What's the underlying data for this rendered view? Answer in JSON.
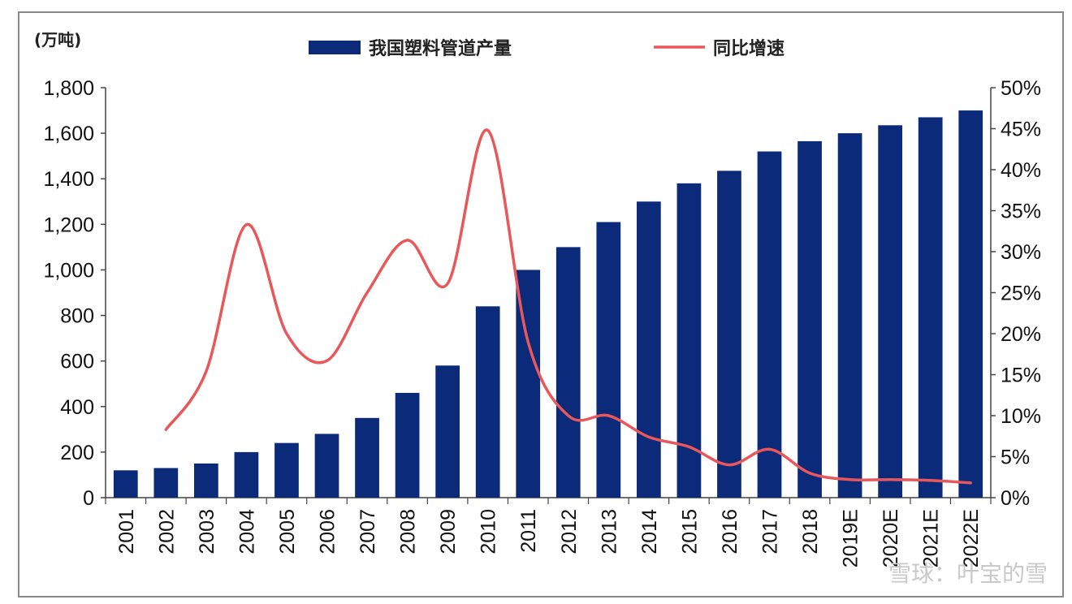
{
  "chart_data": {
    "type": "bar",
    "categories": [
      "2001",
      "2002",
      "2003",
      "2004",
      "2005",
      "2006",
      "2007",
      "2008",
      "2009",
      "2010",
      "2011",
      "2012",
      "2013",
      "2014",
      "2015",
      "2016",
      "2017",
      "2018",
      "2019E",
      "2020E",
      "2021E",
      "2022E"
    ],
    "series": [
      {
        "name": "我国塑料管道产量",
        "type": "bar",
        "axis": "left",
        "color": "#0b2a7a",
        "values": [
          120,
          130,
          150,
          200,
          240,
          280,
          350,
          460,
          580,
          840,
          1000,
          1100,
          1210,
          1300,
          1380,
          1435,
          1520,
          1565,
          1600,
          1635,
          1670,
          1700
        ]
      },
      {
        "name": "同比增速",
        "type": "line",
        "axis": "right",
        "color": "#e8585a",
        "values": [
          null,
          8.3,
          15.4,
          33.3,
          20.0,
          16.7,
          25.0,
          31.4,
          26.1,
          44.8,
          19.0,
          10.0,
          10.0,
          7.4,
          6.2,
          4.0,
          5.9,
          3.0,
          2.2,
          2.2,
          2.1,
          1.8
        ]
      }
    ],
    "left_axis": {
      "unit_label": "(万吨)",
      "ylim": [
        0,
        1800
      ],
      "ticks": [
        "0",
        "200",
        "400",
        "600",
        "800",
        "1,000",
        "1,200",
        "1,400",
        "1,600",
        "1,800"
      ]
    },
    "right_axis": {
      "ylim": [
        0,
        50
      ],
      "ticks": [
        "0%",
        "5%",
        "10%",
        "15%",
        "20%",
        "25%",
        "30%",
        "35%",
        "40%",
        "45%",
        "50%"
      ]
    },
    "xlabel": "",
    "legend_position": "top-center",
    "grid": false,
    "watermark": "雪球：叶宝的雪"
  }
}
